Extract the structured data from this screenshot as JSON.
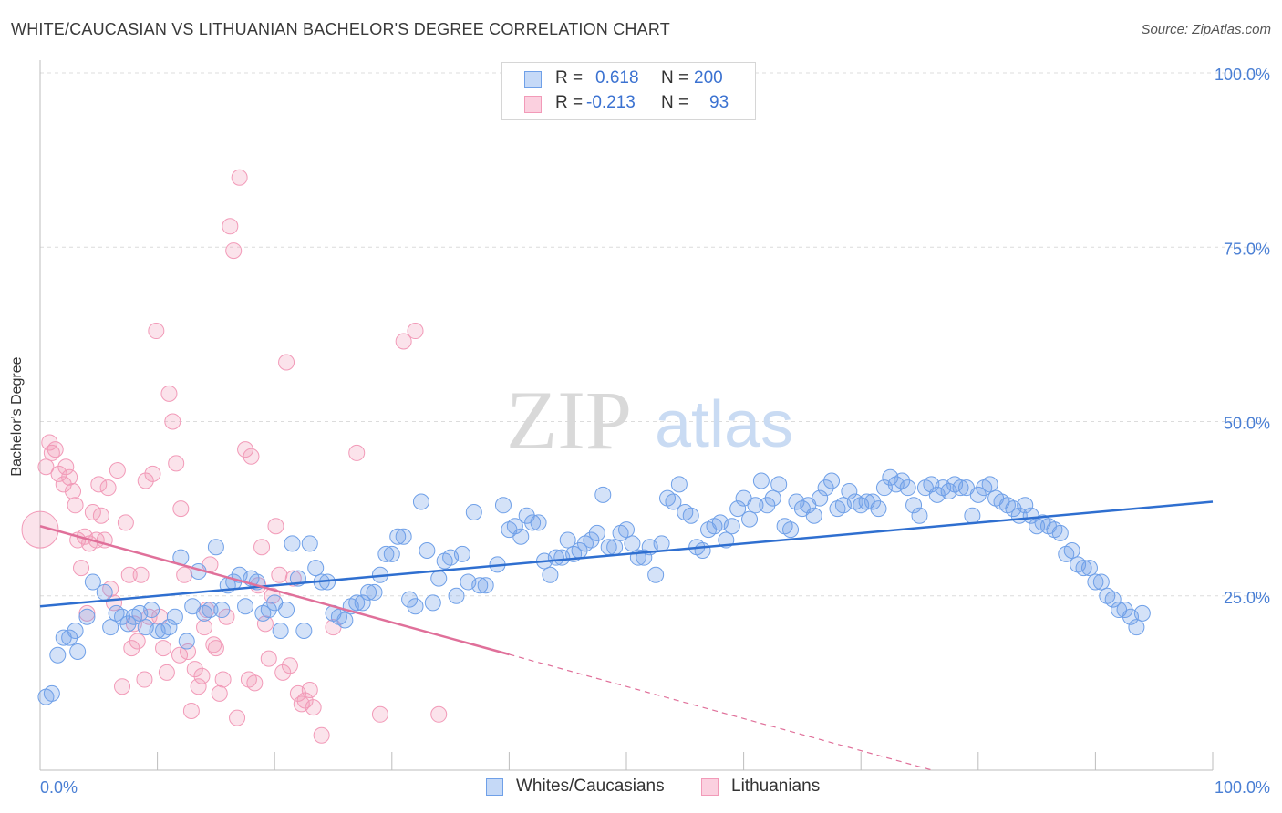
{
  "header": {
    "title": "WHITE/CAUCASIAN VS LITHUANIAN BACHELOR'S DEGREE CORRELATION CHART",
    "source": "Source: ZipAtlas.com"
  },
  "watermark": {
    "zip": "ZIP",
    "atlas": "atlas"
  },
  "legend": {
    "rows": [
      {
        "r_label": "R =",
        "r_value": "0.618",
        "n_label": "N =",
        "n_value": "200",
        "color": "#6fa0e8"
      },
      {
        "r_label": "R =",
        "r_value": "-0.213",
        "n_label": "N =",
        "n_value": "93",
        "color": "#f29ab8"
      }
    ]
  },
  "bottom_legend": [
    {
      "label": "Whites/Caucasians",
      "color": "#6fa0e8"
    },
    {
      "label": "Lithuanians",
      "color": "#f29ab8"
    }
  ],
  "chart_data": {
    "type": "scatter",
    "title": "WHITE/CAUCASIAN VS LITHUANIAN BACHELOR'S DEGREE CORRELATION CHART",
    "xlabel": "",
    "ylabel": "Bachelor's Degree",
    "xlim": [
      0,
      100
    ],
    "ylim": [
      0,
      100
    ],
    "x_tick_labels": [
      "0.0%",
      "100.0%"
    ],
    "y_tick_labels": [
      "25.0%",
      "50.0%",
      "75.0%",
      "100.0%"
    ],
    "y_ticks": [
      25,
      50,
      75,
      100
    ],
    "grid": true,
    "legend_position": "top-center",
    "series": [
      {
        "name": "Whites/Caucasians",
        "color": "#6fa0e8",
        "trend_color": "#2f6fd0",
        "r": 0.618,
        "n": 200,
        "trend": {
          "x": [
            0,
            100
          ],
          "y": [
            23.5,
            38.5
          ],
          "dashed_from": null
        },
        "points": [
          [
            0.5,
            10.5
          ],
          [
            1,
            11
          ],
          [
            1.5,
            16.5
          ],
          [
            2,
            19
          ],
          [
            2.5,
            19
          ],
          [
            3,
            20
          ],
          [
            3.2,
            17
          ],
          [
            4,
            22
          ],
          [
            4.5,
            27
          ],
          [
            5.5,
            25.5
          ],
          [
            6,
            20.5
          ],
          [
            6.5,
            22.5
          ],
          [
            7,
            22
          ],
          [
            7.5,
            21
          ],
          [
            8,
            22
          ],
          [
            8.5,
            22.5
          ],
          [
            9,
            20.5
          ],
          [
            9.5,
            23
          ],
          [
            10,
            20
          ],
          [
            10.5,
            20
          ],
          [
            11,
            20.5
          ],
          [
            11.5,
            22
          ],
          [
            12,
            30.5
          ],
          [
            12.5,
            18.5
          ],
          [
            13,
            23.5
          ],
          [
            13.5,
            28.5
          ],
          [
            14,
            22.5
          ],
          [
            14.5,
            23
          ],
          [
            15,
            32
          ],
          [
            15.5,
            23
          ],
          [
            16,
            26.5
          ],
          [
            16.5,
            27
          ],
          [
            17,
            28
          ],
          [
            17.5,
            23.5
          ],
          [
            18,
            27.5
          ],
          [
            18.5,
            27
          ],
          [
            19,
            22.5
          ],
          [
            19.5,
            23
          ],
          [
            20,
            24
          ],
          [
            20.5,
            20
          ],
          [
            21,
            23
          ],
          [
            21.5,
            32.5
          ],
          [
            22,
            27.5
          ],
          [
            22.5,
            20
          ],
          [
            23,
            32.5
          ],
          [
            23.5,
            29
          ],
          [
            24,
            27
          ],
          [
            24.5,
            27
          ],
          [
            25,
            22.5
          ],
          [
            25.5,
            22
          ],
          [
            26,
            21.5
          ],
          [
            26.5,
            23.5
          ],
          [
            27,
            24
          ],
          [
            27.5,
            24
          ],
          [
            28,
            25.5
          ],
          [
            28.5,
            25.5
          ],
          [
            29,
            28
          ],
          [
            29.5,
            31
          ],
          [
            30,
            31
          ],
          [
            30.5,
            33.5
          ],
          [
            31,
            33.5
          ],
          [
            31.5,
            24.5
          ],
          [
            32,
            23.5
          ],
          [
            32.5,
            38.5
          ],
          [
            33,
            31.5
          ],
          [
            33.5,
            24
          ],
          [
            34,
            27.5
          ],
          [
            34.5,
            30
          ],
          [
            35,
            30.5
          ],
          [
            35.5,
            25
          ],
          [
            36,
            31
          ],
          [
            36.5,
            27
          ],
          [
            37,
            37
          ],
          [
            37.5,
            26.5
          ],
          [
            38,
            26.5
          ],
          [
            39,
            29.5
          ],
          [
            39.5,
            38
          ],
          [
            40,
            34.5
          ],
          [
            40.5,
            35
          ],
          [
            41,
            33.5
          ],
          [
            41.5,
            36.5
          ],
          [
            42,
            35.5
          ],
          [
            42.5,
            35.5
          ],
          [
            43,
            30
          ],
          [
            43.5,
            28
          ],
          [
            44,
            30.5
          ],
          [
            44.5,
            30.5
          ],
          [
            45,
            33
          ],
          [
            45.5,
            31
          ],
          [
            46,
            31.5
          ],
          [
            46.5,
            32.5
          ],
          [
            47,
            33
          ],
          [
            47.5,
            34
          ],
          [
            48,
            39.5
          ],
          [
            48.5,
            32
          ],
          [
            49,
            32
          ],
          [
            49.5,
            34
          ],
          [
            50,
            34.5
          ],
          [
            50.5,
            32.5
          ],
          [
            51,
            30.5
          ],
          [
            51.5,
            30.5
          ],
          [
            52,
            32
          ],
          [
            52.5,
            28
          ],
          [
            53,
            32.5
          ],
          [
            53.5,
            39
          ],
          [
            54,
            38.5
          ],
          [
            54.5,
            41
          ],
          [
            55,
            37
          ],
          [
            55.5,
            36.5
          ],
          [
            56,
            32
          ],
          [
            56.5,
            31.5
          ],
          [
            57,
            34.5
          ],
          [
            57.5,
            35
          ],
          [
            58,
            35.5
          ],
          [
            58.5,
            33
          ],
          [
            59,
            35
          ],
          [
            59.5,
            37.5
          ],
          [
            60,
            39
          ],
          [
            60.5,
            36
          ],
          [
            61,
            38
          ],
          [
            61.5,
            41.5
          ],
          [
            62,
            38
          ],
          [
            62.5,
            39
          ],
          [
            63,
            41
          ],
          [
            63.5,
            35
          ],
          [
            64,
            34.5
          ],
          [
            64.5,
            38.5
          ],
          [
            65,
            37.5
          ],
          [
            65.5,
            38
          ],
          [
            66,
            36.5
          ],
          [
            66.5,
            39
          ],
          [
            67,
            40.5
          ],
          [
            67.5,
            41.5
          ],
          [
            68,
            37.5
          ],
          [
            68.5,
            38
          ],
          [
            69,
            40
          ],
          [
            69.5,
            38.5
          ],
          [
            70,
            38
          ],
          [
            70.5,
            38.5
          ],
          [
            71,
            38.5
          ],
          [
            71.5,
            37.5
          ],
          [
            72,
            40.5
          ],
          [
            72.5,
            42
          ],
          [
            73,
            41
          ],
          [
            73.5,
            41.5
          ],
          [
            74,
            40.5
          ],
          [
            74.5,
            38
          ],
          [
            75,
            36.5
          ],
          [
            75.5,
            40.5
          ],
          [
            76,
            41
          ],
          [
            76.5,
            39.5
          ],
          [
            77,
            40.5
          ],
          [
            77.5,
            40
          ],
          [
            78,
            41
          ],
          [
            78.5,
            40.5
          ],
          [
            79,
            40.5
          ],
          [
            79.5,
            36.5
          ],
          [
            80,
            39.5
          ],
          [
            80.5,
            40.5
          ],
          [
            81,
            41
          ],
          [
            81.5,
            39
          ],
          [
            82,
            38.5
          ],
          [
            82.5,
            38
          ],
          [
            83,
            37.5
          ],
          [
            83.5,
            36.5
          ],
          [
            84,
            38
          ],
          [
            84.5,
            36.5
          ],
          [
            85,
            35
          ],
          [
            85.5,
            35.5
          ],
          [
            86,
            35
          ],
          [
            86.5,
            34.5
          ],
          [
            87,
            34
          ],
          [
            87.5,
            31
          ],
          [
            88,
            31.5
          ],
          [
            88.5,
            29.5
          ],
          [
            89,
            29
          ],
          [
            89.5,
            29
          ],
          [
            90,
            27
          ],
          [
            90.5,
            27
          ],
          [
            91,
            25
          ],
          [
            91.5,
            24.5
          ],
          [
            92,
            23
          ],
          [
            92.5,
            23
          ],
          [
            93,
            22
          ],
          [
            93.5,
            20.5
          ],
          [
            94,
            22.5
          ]
        ]
      },
      {
        "name": "Lithuanians",
        "color": "#f29ab8",
        "trend_color": "#e0709a",
        "r": -0.213,
        "n": 93,
        "trend": {
          "x": [
            0,
            100
          ],
          "y": [
            35,
            -11
          ],
          "solid_until_x": 40
        },
        "points": [
          [
            0,
            34.5
          ],
          [
            0.5,
            43.5
          ],
          [
            0.8,
            47
          ],
          [
            1,
            45.5
          ],
          [
            1.3,
            46
          ],
          [
            1.6,
            42.5
          ],
          [
            2,
            41
          ],
          [
            2.2,
            43.5
          ],
          [
            2.5,
            42
          ],
          [
            2.8,
            40
          ],
          [
            3,
            38
          ],
          [
            3.2,
            33
          ],
          [
            3.5,
            29
          ],
          [
            3.8,
            33.5
          ],
          [
            4,
            22.5
          ],
          [
            4.2,
            32.5
          ],
          [
            4.5,
            37
          ],
          [
            4.8,
            33
          ],
          [
            5,
            41
          ],
          [
            5.2,
            36.5
          ],
          [
            5.5,
            33
          ],
          [
            5.8,
            40.5
          ],
          [
            6,
            26
          ],
          [
            6.3,
            24
          ],
          [
            6.6,
            43
          ],
          [
            7,
            12
          ],
          [
            7.3,
            35.5
          ],
          [
            7.6,
            28
          ],
          [
            7.8,
            17.5
          ],
          [
            8,
            21
          ],
          [
            8.3,
            18.5
          ],
          [
            8.6,
            28
          ],
          [
            8.9,
            13
          ],
          [
            9,
            41.5
          ],
          [
            9.3,
            22
          ],
          [
            9.6,
            42.5
          ],
          [
            9.9,
            63
          ],
          [
            10.2,
            22
          ],
          [
            10.5,
            17.5
          ],
          [
            10.8,
            14
          ],
          [
            11,
            54
          ],
          [
            11.3,
            50
          ],
          [
            11.6,
            44
          ],
          [
            11.9,
            16.5
          ],
          [
            12,
            37.5
          ],
          [
            12.3,
            28
          ],
          [
            12.6,
            17
          ],
          [
            12.9,
            8.5
          ],
          [
            13.2,
            14.5
          ],
          [
            13.5,
            12
          ],
          [
            13.8,
            13.5
          ],
          [
            14,
            20.5
          ],
          [
            14.2,
            23
          ],
          [
            14.5,
            29.5
          ],
          [
            14.8,
            18
          ],
          [
            15,
            17.5
          ],
          [
            15.3,
            11
          ],
          [
            15.6,
            13
          ],
          [
            15.9,
            22
          ],
          [
            16.2,
            78
          ],
          [
            16.5,
            74.5
          ],
          [
            16.8,
            7.5
          ],
          [
            17,
            85
          ],
          [
            17.5,
            46
          ],
          [
            17.8,
            13
          ],
          [
            18,
            45
          ],
          [
            18.3,
            12.5
          ],
          [
            18.6,
            26.5
          ],
          [
            18.9,
            32
          ],
          [
            19.2,
            21
          ],
          [
            19.5,
            16
          ],
          [
            19.8,
            25
          ],
          [
            20.1,
            35
          ],
          [
            20.4,
            28
          ],
          [
            20.7,
            14
          ],
          [
            21,
            58.5
          ],
          [
            21.3,
            15
          ],
          [
            21.6,
            27.5
          ],
          [
            22,
            11
          ],
          [
            22.3,
            9.5
          ],
          [
            22.6,
            10
          ],
          [
            23,
            11.5
          ],
          [
            23.3,
            9
          ],
          [
            24,
            5
          ],
          [
            25,
            20.5
          ],
          [
            27,
            45.5
          ],
          [
            29,
            8
          ],
          [
            31,
            61.5
          ],
          [
            32,
            63
          ],
          [
            34,
            8
          ]
        ]
      }
    ]
  }
}
